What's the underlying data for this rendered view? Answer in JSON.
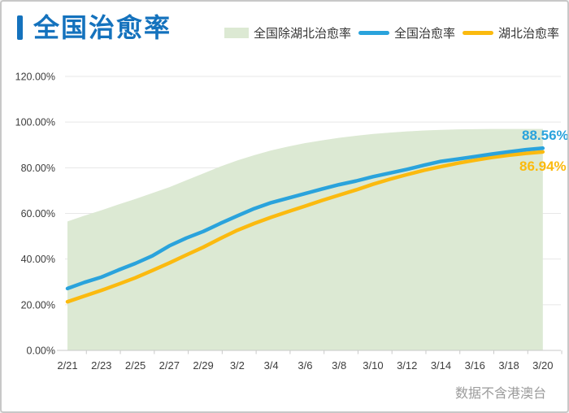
{
  "header": {
    "title": "全国治愈率"
  },
  "footer": {
    "note": "数据不含港澳台"
  },
  "colors": {
    "title_blue": "#1472bd",
    "national_line": "#2aa3dc",
    "hubei_line": "#fbba0f",
    "ex_hubei_area": "#dce9d3",
    "grid_line": "#e7e7e7",
    "axis_line": "#c9c9c9",
    "tick_text": "#3d3d3d",
    "legend_text": "#333333",
    "footnote_text": "#9b9b9b"
  },
  "chart_data": {
    "type": "line",
    "title": "全国治愈率",
    "xlabel": "",
    "ylabel": "",
    "ylim": [
      0,
      120
    ],
    "grid": true,
    "legend_position": "top-right",
    "y_tick_values": [
      0,
      20,
      40,
      60,
      80,
      100,
      120
    ],
    "y_tick_labels": [
      "0.00%",
      "20.00%",
      "40.00%",
      "60.00%",
      "80.00%",
      "100.00%",
      "120.00%"
    ],
    "x_label_every": 2,
    "categories": [
      "2/21",
      "2/22",
      "2/23",
      "2/24",
      "2/25",
      "2/26",
      "2/27",
      "2/28",
      "2/29",
      "3/1",
      "3/2",
      "3/3",
      "3/4",
      "3/5",
      "3/6",
      "3/7",
      "3/8",
      "3/9",
      "3/10",
      "3/11",
      "3/12",
      "3/13",
      "3/14",
      "3/15",
      "3/16",
      "3/17",
      "3/18",
      "3/19",
      "3/20"
    ],
    "series": [
      {
        "name": "全国除湖北治愈率",
        "style": "area",
        "color": "#dce9d3",
        "values": [
          56.5,
          59.0,
          61.4,
          63.9,
          66.3,
          68.9,
          71.5,
          74.5,
          77.5,
          80.5,
          83.2,
          85.5,
          87.6,
          89.3,
          90.8,
          92.0,
          93.1,
          94.0,
          94.8,
          95.4,
          95.9,
          96.3,
          96.6,
          96.8,
          96.9,
          97.0,
          97.0,
          97.0,
          97.0
        ]
      },
      {
        "name": "湖北治愈率",
        "style": "line",
        "color": "#fbba0f",
        "values": [
          21.3,
          23.8,
          26.3,
          29.0,
          31.8,
          35.0,
          38.3,
          41.8,
          45.2,
          49.0,
          52.6,
          55.6,
          58.3,
          60.8,
          63.2,
          65.7,
          68.0,
          70.3,
          72.8,
          75.0,
          77.0,
          78.9,
          80.5,
          82.0,
          83.3,
          84.5,
          85.5,
          86.3,
          86.94
        ]
      },
      {
        "name": "全国治愈率",
        "style": "line",
        "color": "#2aa3dc",
        "values": [
          27.1,
          29.8,
          32.1,
          35.2,
          38.1,
          41.4,
          45.8,
          49.2,
          52.1,
          55.6,
          58.9,
          62.1,
          64.7,
          66.7,
          68.7,
          70.7,
          72.6,
          74.2,
          76.1,
          77.7,
          79.3,
          81.1,
          82.8,
          83.8,
          84.9,
          86.0,
          87.0,
          87.9,
          88.56
        ]
      }
    ],
    "end_labels": {
      "national": "88.56%",
      "hubei": "86.94%"
    }
  },
  "legend": {
    "items": [
      {
        "label": "全国除湖北治愈率",
        "series_index": 0
      },
      {
        "label": "全国治愈率",
        "series_index": 2
      },
      {
        "label": "湖北治愈率",
        "series_index": 1
      }
    ]
  }
}
